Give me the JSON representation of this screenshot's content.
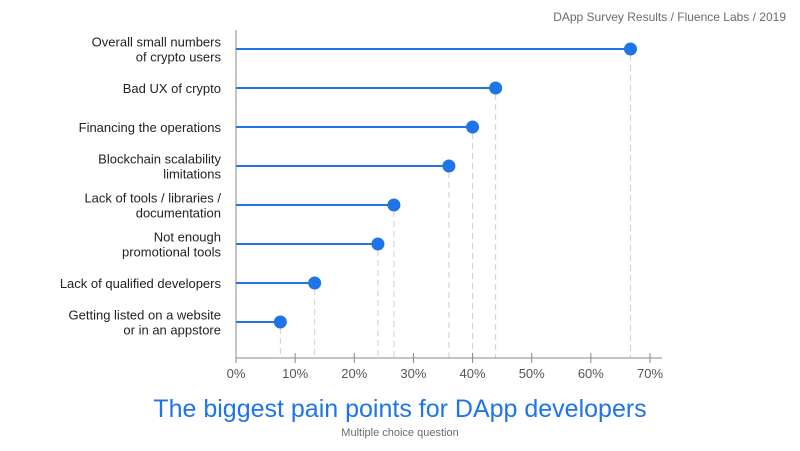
{
  "header": {
    "source": "DApp Survey Results / Fluence Labs / 2019"
  },
  "colors": {
    "accent": "#1f74e8",
    "axis": "#888888",
    "guide": "#cfcfcf",
    "text": "#222222"
  },
  "chart_data": {
    "type": "bar",
    "orientation": "horizontal",
    "style": "lollipop",
    "title": "The biggest pain points for DApp developers",
    "subtitle": "Multiple choice question",
    "categories": [
      [
        "Overall small numbers",
        "of crypto users"
      ],
      [
        "Bad UX of crypto"
      ],
      [
        "Financing  the operations"
      ],
      [
        "Blockchain scalability",
        "limitations"
      ],
      [
        "Lack of tools / libraries /",
        "documentation"
      ],
      [
        "Not enough",
        "promotional tools"
      ],
      [
        "Lack of qualified developers"
      ],
      [
        "Getting listed on a website",
        "or in an appstore"
      ]
    ],
    "values": [
      66.7,
      43.9,
      40.0,
      36.0,
      26.7,
      24.0,
      13.3,
      7.5
    ],
    "xlim": [
      0,
      70
    ],
    "xticks": [
      0,
      10,
      20,
      30,
      40,
      50,
      60,
      70
    ],
    "xtick_labels": [
      "0%",
      "10%",
      "20%",
      "30%",
      "40%",
      "50%",
      "60%",
      "70%"
    ],
    "grid": false,
    "value_guides": true
  }
}
